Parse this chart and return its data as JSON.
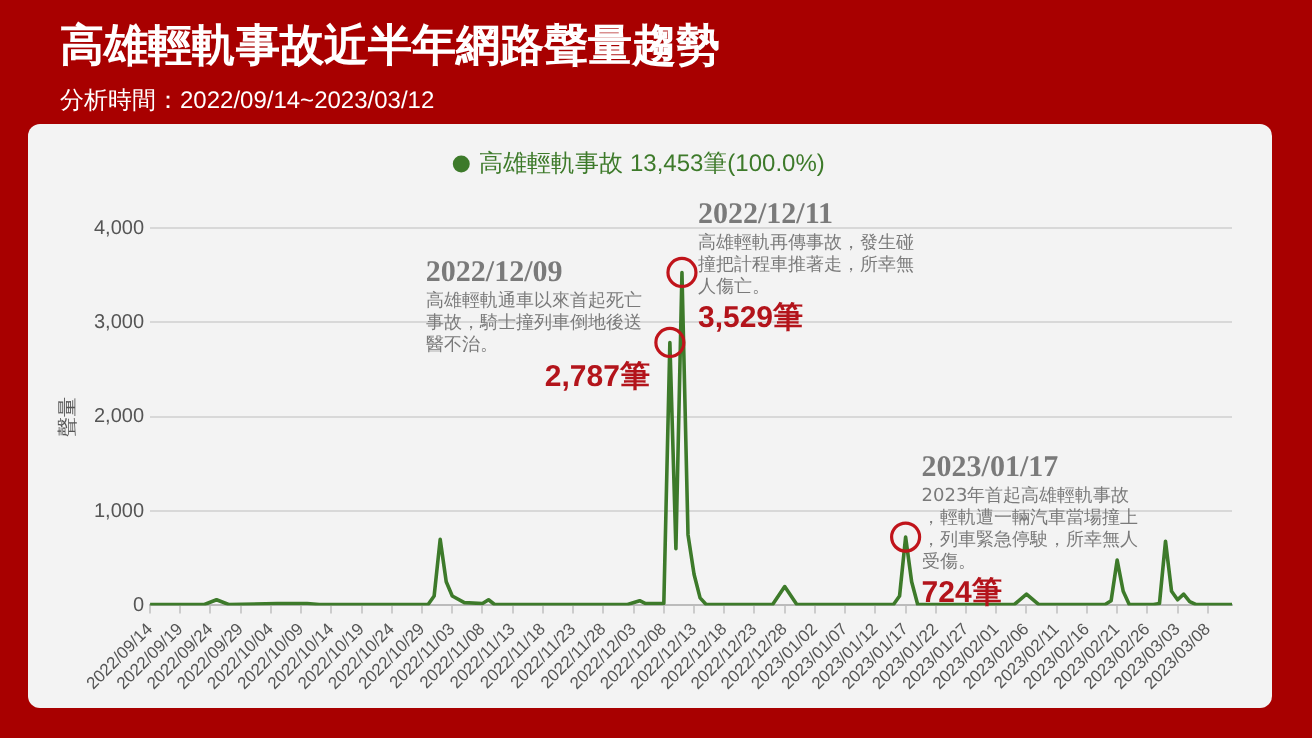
{
  "chart_data": {
    "type": "line",
    "title": "高雄輕軌事故近半年網路聲量趨勢",
    "subtitle": "分析時間：2022/09/14~2023/03/12",
    "ylabel": "聲量",
    "legend": "top",
    "grid": "y",
    "xlim": [
      "2022-09-14",
      "2023-03-12"
    ],
    "xticks": [
      {
        "value": "2022-09-14",
        "label": "2022/09/14"
      },
      {
        "value": "2022-09-19",
        "label": "2022/09/19"
      },
      {
        "value": "2022-09-24",
        "label": "2022/09/24"
      },
      {
        "value": "2022-09-29",
        "label": "2022/09/29"
      },
      {
        "value": "2022-10-04",
        "label": "2022/10/04"
      },
      {
        "value": "2022-10-09",
        "label": "2022/10/09"
      },
      {
        "value": "2022-10-14",
        "label": "2022/10/14"
      },
      {
        "value": "2022-10-19",
        "label": "2022/10/19"
      },
      {
        "value": "2022-10-24",
        "label": "2022/10/24"
      },
      {
        "value": "2022-10-29",
        "label": "2022/10/29"
      },
      {
        "value": "2022-11-03",
        "label": "2022/11/03"
      },
      {
        "value": "2022-11-08",
        "label": "2022/11/08"
      },
      {
        "value": "2022-11-13",
        "label": "2022/11/13"
      },
      {
        "value": "2022-11-18",
        "label": "2022/11/18"
      },
      {
        "value": "2022-11-23",
        "label": "2022/11/23"
      },
      {
        "value": "2022-11-28",
        "label": "2022/11/28"
      },
      {
        "value": "2022-12-03",
        "label": "2022/12/03"
      },
      {
        "value": "2022-12-08",
        "label": "2022/12/08"
      },
      {
        "value": "2022-12-13",
        "label": "2022/12/13"
      },
      {
        "value": "2022-12-18",
        "label": "2022/12/18"
      },
      {
        "value": "2022-12-23",
        "label": "2022/12/23"
      },
      {
        "value": "2022-12-28",
        "label": "2022/12/28"
      },
      {
        "value": "2023-01-02",
        "label": "2023/01/02"
      },
      {
        "value": "2023-01-07",
        "label": "2023/01/07"
      },
      {
        "value": "2023-01-12",
        "label": "2023/01/12"
      },
      {
        "value": "2023-01-17",
        "label": "2023/01/17"
      },
      {
        "value": "2023-01-22",
        "label": "2023/01/22"
      },
      {
        "value": "2023-01-27",
        "label": "2023/01/27"
      },
      {
        "value": "2023-02-01",
        "label": "2023/02/01"
      },
      {
        "value": "2023-02-06",
        "label": "2023/02/06"
      },
      {
        "value": "2023-02-11",
        "label": "2023/02/11"
      },
      {
        "value": "2023-02-16",
        "label": "2023/02/16"
      },
      {
        "value": "2023-02-21",
        "label": "2023/02/21"
      },
      {
        "value": "2023-02-26",
        "label": "2023/02/26"
      },
      {
        "value": "2023-03-03",
        "label": "2023/03/03"
      },
      {
        "value": "2023-03-08",
        "label": "2023/03/08"
      }
    ],
    "ylim": [
      0,
      4000
    ],
    "yticks": [
      {
        "value": 0,
        "label": "0"
      },
      {
        "value": 1000,
        "label": "1,000"
      },
      {
        "value": 2000,
        "label": "2,000"
      },
      {
        "value": 3000,
        "label": "3,000"
      },
      {
        "value": 4000,
        "label": "4,000"
      }
    ],
    "series": [
      {
        "name": "高雄輕軌事故 13,453筆(100.0%)",
        "color": "#3d7a2a",
        "x": [
          "2022-09-14",
          "2022-09-23",
          "2022-09-25",
          "2022-09-27",
          "2022-10-05",
          "2022-10-10",
          "2022-10-12",
          "2022-10-30",
          "2022-10-31",
          "2022-11-01",
          "2022-11-02",
          "2022-11-03",
          "2022-11-05",
          "2022-11-08",
          "2022-11-09",
          "2022-11-10",
          "2022-11-20",
          "2022-12-02",
          "2022-12-04",
          "2022-12-05",
          "2022-12-08",
          "2022-12-09",
          "2022-12-10",
          "2022-12-11",
          "2022-12-12",
          "2022-12-13",
          "2022-12-14",
          "2022-12-15",
          "2022-12-26",
          "2022-12-28",
          "2022-12-30",
          "2023-01-15",
          "2023-01-16",
          "2023-01-17",
          "2023-01-18",
          "2023-01-19",
          "2023-02-04",
          "2023-02-06",
          "2023-02-08",
          "2023-02-19",
          "2023-02-20",
          "2023-02-21",
          "2023-02-22",
          "2023-02-23",
          "2023-02-27",
          "2023-02-28",
          "2023-03-01",
          "2023-03-02",
          "2023-03-03",
          "2023-03-04",
          "2023-03-05",
          "2023-03-06",
          "2023-03-12"
        ],
        "values": [
          10,
          10,
          60,
          10,
          20,
          20,
          10,
          10,
          100,
          700,
          250,
          100,
          30,
          20,
          60,
          10,
          10,
          10,
          50,
          20,
          20,
          2787,
          600,
          3529,
          750,
          330,
          80,
          10,
          10,
          200,
          10,
          10,
          100,
          724,
          250,
          10,
          10,
          120,
          10,
          10,
          50,
          480,
          150,
          10,
          10,
          20,
          680,
          150,
          60,
          120,
          40,
          10,
          10
        ],
        "value_labels": [
          null,
          null,
          null,
          null,
          null,
          null,
          null,
          null,
          null,
          null,
          null,
          null,
          null,
          null,
          null,
          null,
          null,
          null,
          null,
          null,
          null,
          "2,787筆",
          null,
          "3,529筆",
          null,
          null,
          null,
          null,
          null,
          null,
          null,
          null,
          null,
          "724筆",
          null,
          null,
          null,
          null,
          null,
          null,
          null,
          null,
          null,
          null,
          null,
          null,
          null,
          null,
          null,
          null,
          null,
          null,
          null
        ]
      }
    ],
    "annotations": [
      {
        "text": "2022/12/09\n高雄輕軌通車以來首起死亡事故，騎士撞列車倒地後送醫不治。",
        "x": "2022-12-09",
        "y": 2787
      },
      {
        "text": "2022/12/11\n高雄輕軌再傳事故，發生碰撞把計程車推著走，所幸無人傷亡。",
        "x": "2022-12-11",
        "y": 3529
      },
      {
        "text": "2023/01/17\n2023年首起高雄輕軌事故，輕軌遭一輛汽車當場撞上，列車緊急停駛，所幸無人受傷。",
        "x": "2023-01-17",
        "y": 724
      }
    ]
  }
}
